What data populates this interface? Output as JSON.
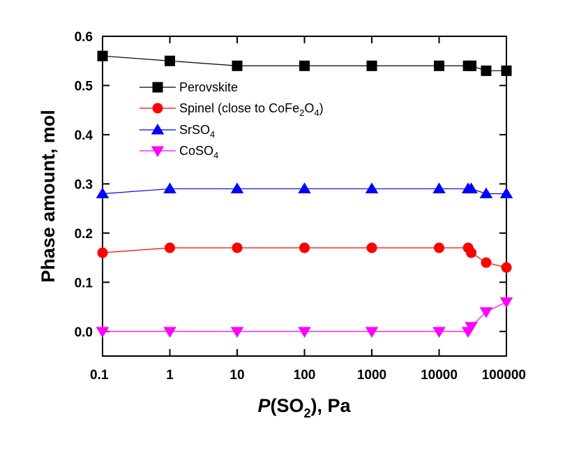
{
  "chart_data": {
    "type": "line",
    "xscale": "log",
    "xlim": [
      0.1,
      100000
    ],
    "ylim": [
      -0.05,
      0.6
    ],
    "x_tick_labels": [
      "0.1",
      "1",
      "10",
      "100",
      "1000",
      "10000",
      "100000"
    ],
    "x_tick_values": [
      0.1,
      1,
      10,
      100,
      1000,
      10000,
      100000
    ],
    "y_tick_labels": [
      "0.0",
      "0.1",
      "0.2",
      "0.3",
      "0.4",
      "0.5",
      "0.6"
    ],
    "y_tick_values": [
      0.0,
      0.1,
      0.2,
      0.3,
      0.4,
      0.5,
      0.6
    ],
    "xlabel": {
      "italic": "P",
      "text": "(SO",
      "sub": "2",
      "tail": "), Pa"
    },
    "ylabel": "Phase amount, mol",
    "grid": false,
    "legend_position": "top-left",
    "series": [
      {
        "name": "Perovskite",
        "color": "#000000",
        "marker": "square",
        "x": [
          0.1,
          1,
          10,
          100,
          1000,
          10000,
          27000,
          30000,
          50000,
          100000
        ],
        "y": [
          0.56,
          0.55,
          0.54,
          0.54,
          0.54,
          0.54,
          0.54,
          0.54,
          0.53,
          0.53
        ]
      },
      {
        "name": "Spinel (close to CoFe2O4)",
        "label_parts": [
          [
            "Spinel (close to CoFe",
            ""
          ],
          [
            "2",
            "sub"
          ],
          [
            "O",
            ""
          ],
          [
            "4",
            "sub"
          ],
          [
            ")",
            ""
          ]
        ],
        "color": "#ff0000",
        "marker": "circle",
        "x": [
          0.1,
          1,
          10,
          100,
          1000,
          10000,
          27000,
          30000,
          50000,
          100000
        ],
        "y": [
          0.16,
          0.17,
          0.17,
          0.17,
          0.17,
          0.17,
          0.17,
          0.16,
          0.14,
          0.13
        ]
      },
      {
        "name": "SrSO4",
        "label_parts": [
          [
            "SrSO",
            ""
          ],
          [
            "4",
            "sub"
          ]
        ],
        "color": "#0000ff",
        "marker": "triangle-up",
        "x": [
          0.1,
          1,
          10,
          100,
          1000,
          10000,
          27000,
          30000,
          50000,
          100000
        ],
        "y": [
          0.28,
          0.29,
          0.29,
          0.29,
          0.29,
          0.29,
          0.29,
          0.29,
          0.28,
          0.28
        ]
      },
      {
        "name": "CoSO4",
        "label_parts": [
          [
            "CoSO",
            ""
          ],
          [
            "4",
            "sub"
          ]
        ],
        "color": "#ff00ff",
        "marker": "triangle-down",
        "x": [
          0.1,
          1,
          10,
          100,
          1000,
          10000,
          27000,
          30000,
          50000,
          100000
        ],
        "y": [
          0.0,
          0.0,
          0.0,
          0.0,
          0.0,
          0.0,
          0.0,
          0.01,
          0.04,
          0.06
        ]
      }
    ]
  }
}
